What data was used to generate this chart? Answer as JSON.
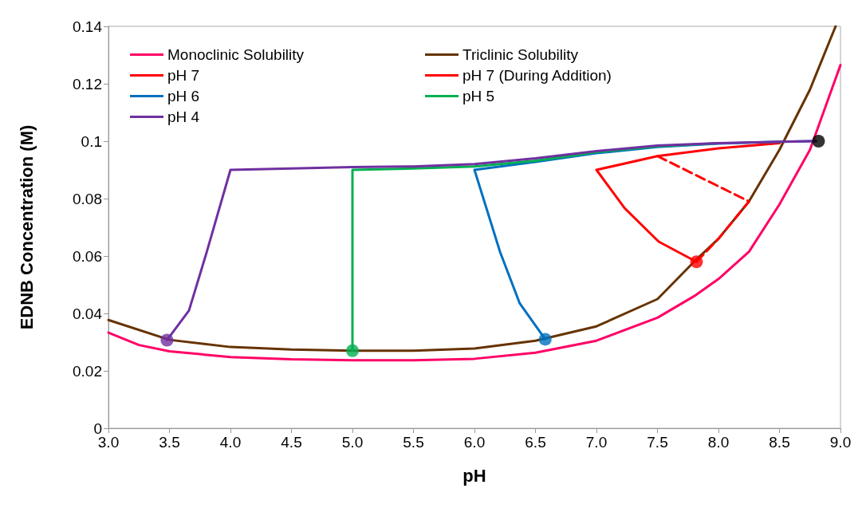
{
  "chart_data": {
    "type": "line",
    "xlabel": "pH",
    "ylabel": "EDNB Concentration (M)",
    "xlim": [
      3,
      9
    ],
    "ylim": [
      0,
      0.14
    ],
    "xticks": [
      {
        "value": 3,
        "label": "3.0"
      },
      {
        "value": 3.5,
        "label": "3.5"
      },
      {
        "value": 4,
        "label": "4.0"
      },
      {
        "value": 4.5,
        "label": "4.5"
      },
      {
        "value": 5,
        "label": "5.0"
      },
      {
        "value": 5.5,
        "label": "5.5"
      },
      {
        "value": 6,
        "label": "6.0"
      },
      {
        "value": 6.5,
        "label": "6.5"
      },
      {
        "value": 7,
        "label": "7.0"
      },
      {
        "value": 7.5,
        "label": "7.5"
      },
      {
        "value": 8,
        "label": "8.0"
      },
      {
        "value": 8.5,
        "label": "8.5"
      },
      {
        "value": 9,
        "label": "9.0"
      }
    ],
    "yticks": [
      0,
      0.02,
      0.04,
      0.06,
      0.08,
      0.1,
      0.12,
      0.14
    ],
    "grid": false,
    "legend": "top left",
    "marker": "none",
    "line_style": "solid",
    "series": [
      {
        "name": "Monoclinic Solubility",
        "color": "#ff0066",
        "x": [
          3,
          3.25,
          3.5,
          4,
          4.5,
          5,
          5.5,
          6,
          6.5,
          7,
          7.5,
          7.8,
          8,
          8.25,
          8.5,
          8.75,
          9
        ],
        "values": [
          0.0333,
          0.029,
          0.0268,
          0.0248,
          0.024,
          0.0237,
          0.0237,
          0.0242,
          0.0263,
          0.0305,
          0.0385,
          0.046,
          0.052,
          0.0615,
          0.078,
          0.097,
          0.1265
        ]
      },
      {
        "name": "Triclinic Solubility",
        "color": "#663300",
        "x": [
          3,
          3.5,
          4,
          4.5,
          5,
          5.5,
          6,
          6.5,
          7,
          7.5,
          7.8,
          8,
          8.25,
          8.5,
          8.75,
          8.96
        ],
        "values": [
          0.0377,
          0.0308,
          0.0283,
          0.0274,
          0.027,
          0.027,
          0.0278,
          0.0305,
          0.0355,
          0.045,
          0.058,
          0.066,
          0.079,
          0.097,
          0.118,
          0.14
        ]
      },
      {
        "name": "pH 7",
        "color": "#ff0000",
        "x": [
          7.82,
          7.51,
          7.23,
          7,
          7.5,
          8,
          8.5
        ],
        "values": [
          0.058,
          0.065,
          0.0767,
          0.09,
          0.0948,
          0.0975,
          0.0993
        ]
      },
      {
        "name": "pH 7 (During Addition)",
        "color": "#ff0000",
        "line_style": "dashed",
        "x": [
          7.5,
          8.25,
          8,
          7.82
        ],
        "values": [
          0.0948,
          0.079,
          0.066,
          0.058
        ]
      },
      {
        "name": "pH 6",
        "color": "#0070c0",
        "x": [
          6.58,
          6.37,
          6.21,
          6,
          6.5,
          7,
          7.5,
          8,
          8.5,
          8.8
        ],
        "values": [
          0.031,
          0.0436,
          0.0614,
          0.09,
          0.0928,
          0.0958,
          0.098,
          0.0992,
          0.0998,
          0.1
        ]
      },
      {
        "name": "pH 5",
        "color": "#00b050",
        "x": [
          5,
          5,
          5.5,
          6,
          6.5,
          7,
          7.5,
          8
        ],
        "values": [
          0.027,
          0.09,
          0.0905,
          0.0912,
          0.0932,
          0.0962,
          0.0982,
          0.0993
        ]
      },
      {
        "name": "pH 4",
        "color": "#7030a0",
        "x": [
          3.48,
          3.66,
          3.8,
          4,
          4.5,
          5,
          5.5,
          6,
          6.5,
          7,
          7.5,
          8,
          8.5,
          8.8
        ],
        "values": [
          0.0307,
          0.041,
          0.0606,
          0.09,
          0.0905,
          0.091,
          0.0912,
          0.092,
          0.094,
          0.0965,
          0.0985,
          0.0993,
          0.0998,
          0.1
        ]
      },
      {
        "type": "scatter",
        "marker": "circle",
        "color": "#7030a0",
        "x": [
          3.48
        ],
        "values": [
          0.0307
        ]
      },
      {
        "type": "scatter",
        "marker": "circle",
        "color": "#00b050",
        "x": [
          5
        ],
        "values": [
          0.027
        ]
      },
      {
        "type": "scatter",
        "marker": "circle",
        "color": "#0070c0",
        "x": [
          6.58
        ],
        "values": [
          0.031
        ]
      },
      {
        "type": "scatter",
        "marker": "circle",
        "color": "#ff0000",
        "x": [
          7.82
        ],
        "values": [
          0.058
        ]
      },
      {
        "type": "scatter",
        "marker": "circle",
        "color": "#000000",
        "x": [
          8.82
        ],
        "values": [
          0.1
        ]
      }
    ]
  }
}
